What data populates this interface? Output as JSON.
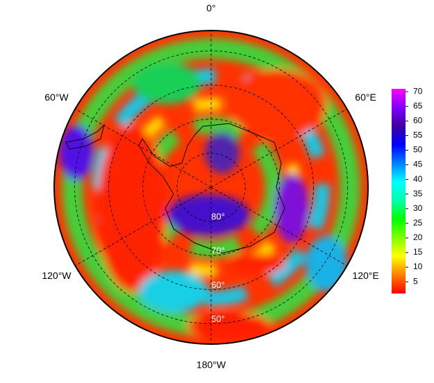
{
  "chart_data": {
    "type": "polar-map",
    "rlim": [
      -90,
      -44
    ],
    "lon_labels": [
      {
        "value": 0,
        "label": "0°"
      },
      {
        "value": 60,
        "label": "60°E"
      },
      {
        "value": 120,
        "label": "120°E"
      },
      {
        "value": 180,
        "label": "180°W"
      },
      {
        "value": -120,
        "label": "120°W"
      },
      {
        "value": -60,
        "label": "60°W"
      }
    ],
    "lat_labels": [
      {
        "value": -80,
        "label": "80°"
      },
      {
        "value": -70,
        "label": "70°"
      },
      {
        "value": -60,
        "label": "60°"
      },
      {
        "value": -50,
        "label": "50°"
      }
    ],
    "colorbar": {
      "clim": [
        1,
        71
      ],
      "ticks": [
        5,
        10,
        15,
        20,
        25,
        30,
        35,
        40,
        45,
        50,
        55,
        60,
        65,
        70
      ],
      "colors": [
        "#ff0000",
        "#ff8000",
        "#ffff00",
        "#80ff00",
        "#00ff00",
        "#00ffaa",
        "#00ffff",
        "#0080ff",
        "#0000ff",
        "#4000a0",
        "#8000ff",
        "#ff00ff"
      ]
    }
  }
}
